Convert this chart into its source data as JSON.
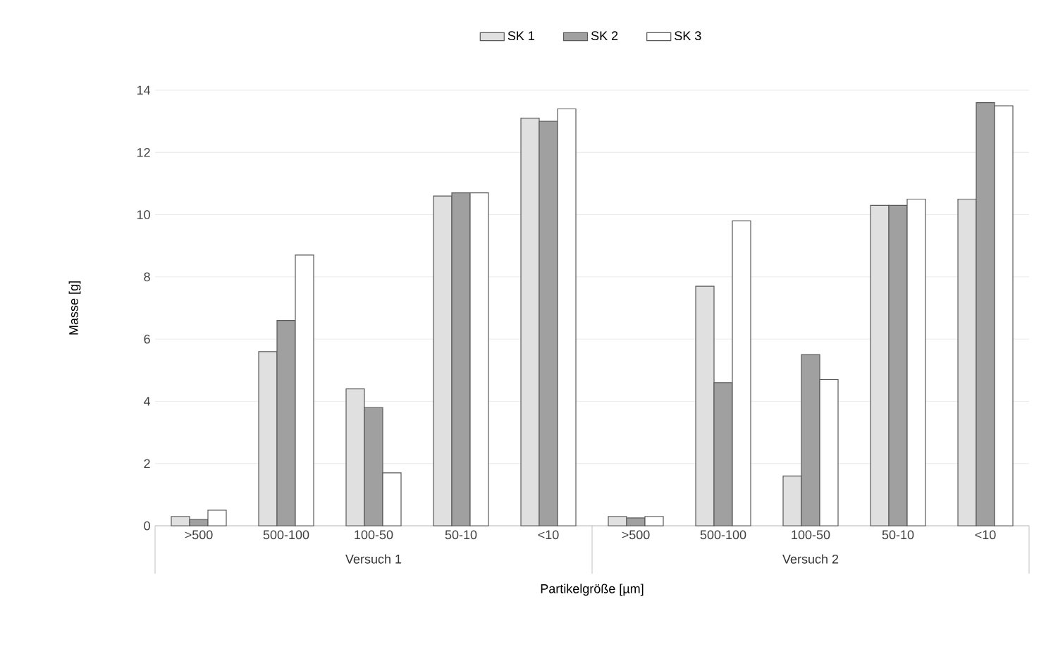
{
  "chart_data": {
    "type": "bar",
    "xlabel": "Partikelgröße [µm]",
    "ylabel": "Masse [g]",
    "categories": [
      ">500",
      "500-100",
      "100-50",
      "50-10",
      "<10",
      ">500",
      "500-100",
      "100-50",
      "50-10",
      "<10"
    ],
    "annotations": [
      "Versuch 1",
      "Versuch 2"
    ],
    "series": [
      {
        "name": "SK 1",
        "color": "#e0e0e0",
        "values": [
          0.3,
          5.6,
          4.4,
          10.6,
          13.1,
          0.3,
          7.7,
          1.6,
          10.3,
          10.5
        ]
      },
      {
        "name": "SK 2",
        "color": "#a0a0a0",
        "values": [
          0.2,
          6.6,
          3.8,
          10.7,
          13.0,
          0.25,
          4.6,
          5.5,
          10.3,
          13.6
        ]
      },
      {
        "name": "SK 3",
        "color": "#ffffff",
        "values": [
          0.5,
          8.7,
          1.7,
          10.7,
          13.4,
          0.3,
          9.8,
          4.7,
          10.5,
          13.5
        ]
      }
    ],
    "ylim": [
      0,
      14
    ],
    "yticks": [
      0,
      2,
      4,
      6,
      8,
      10,
      12,
      14
    ],
    "grid": "y",
    "legend": "top"
  }
}
